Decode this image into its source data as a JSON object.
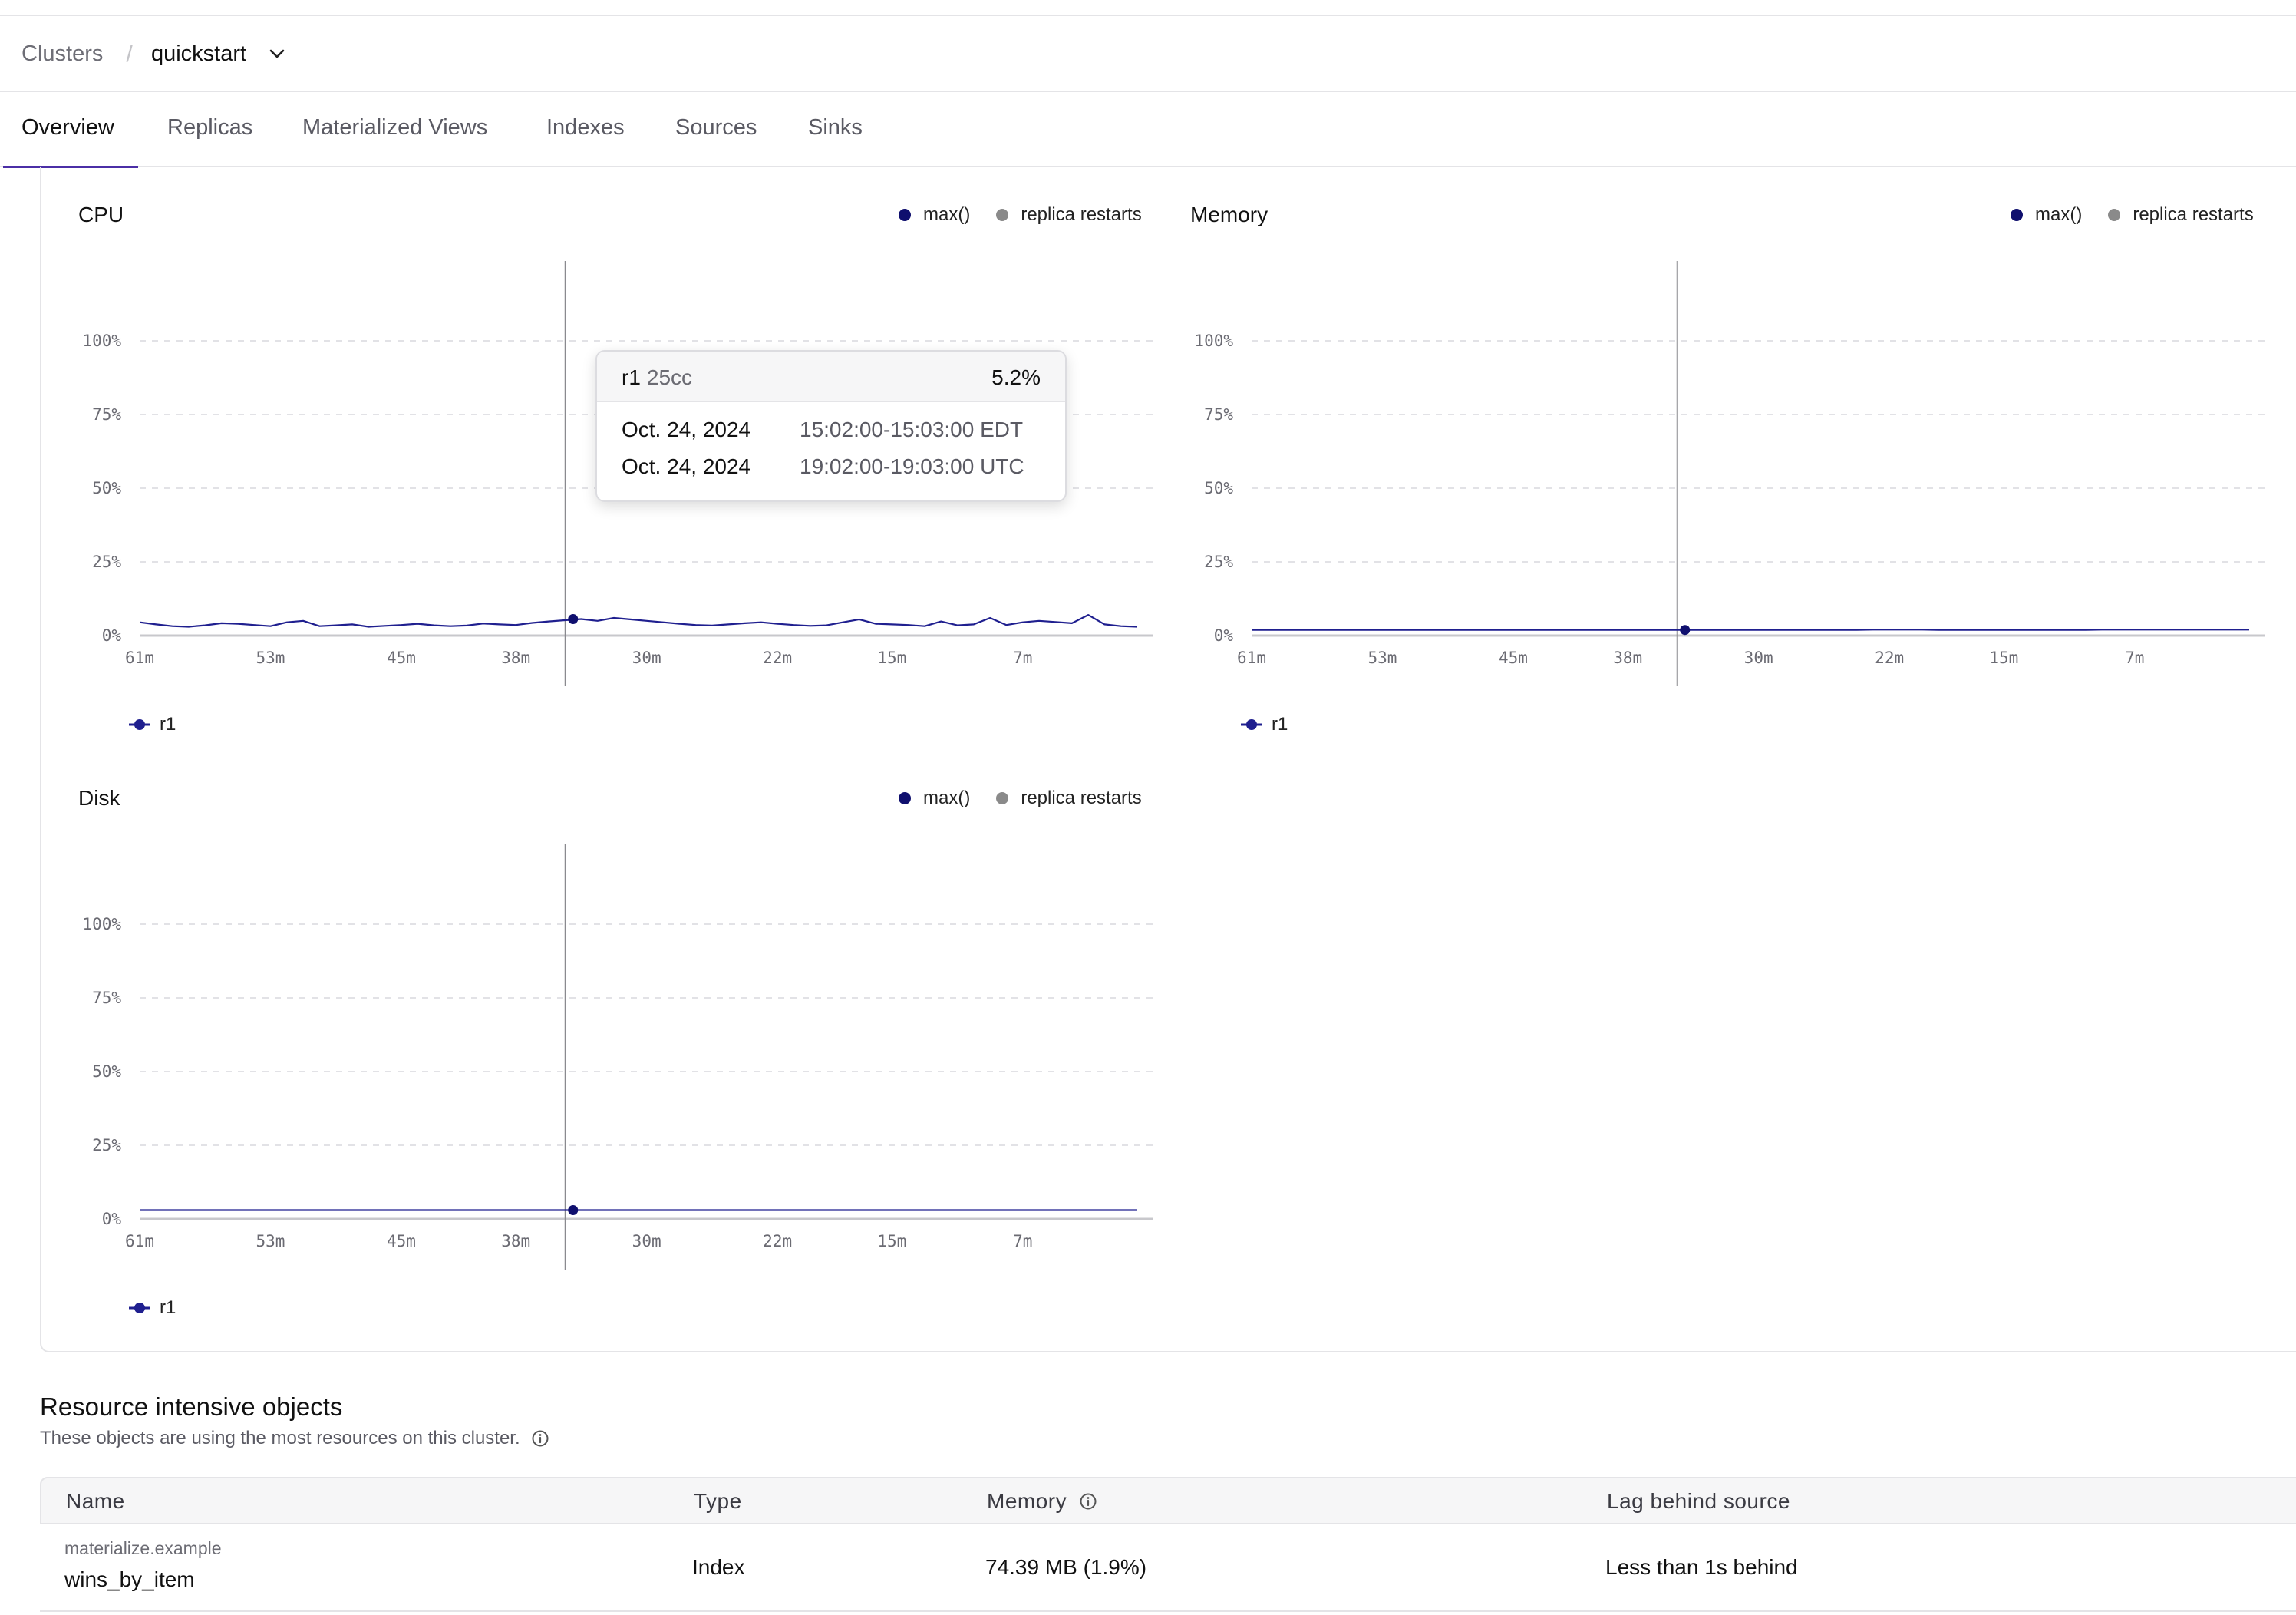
{
  "breadcrumb": {
    "root": "Clusters",
    "separator": "/",
    "current": "quickstart"
  },
  "tabs": [
    {
      "label": "Overview",
      "active": true
    },
    {
      "label": "Replicas",
      "active": false
    },
    {
      "label": "Materialized Views",
      "active": false
    },
    {
      "label": "Indexes",
      "active": false
    },
    {
      "label": "Sources",
      "active": false
    },
    {
      "label": "Sinks",
      "active": false
    }
  ],
  "legend": {
    "max_label": "max()",
    "restarts_label": "replica restarts",
    "max_color": "#0f0f6e",
    "restarts_color": "#8a8a8a"
  },
  "series_color": "#1f1f8f",
  "chart_data": [
    {
      "type": "line",
      "title": "CPU",
      "yticks": [
        "0%",
        "25%",
        "50%",
        "75%",
        "100%"
      ],
      "ylim": [
        0,
        100
      ],
      "xticks": [
        "61m",
        "53m",
        "45m",
        "38m",
        "30m",
        "22m",
        "15m",
        "7m"
      ],
      "x_range": [
        61,
        0
      ],
      "cursor_minute": 34.5,
      "grid": true,
      "legend_position": "top-right",
      "series": [
        {
          "name": "r1",
          "values": [
            4.5,
            3.8,
            3.2,
            3.0,
            3.5,
            4.2,
            4.0,
            3.6,
            3.2,
            4.5,
            5.0,
            3.2,
            3.5,
            3.8,
            3.0,
            3.3,
            3.6,
            4.0,
            3.5,
            3.2,
            3.4,
            4.1,
            3.8,
            3.6,
            4.3,
            4.8,
            5.2,
            5.6,
            5.0,
            6.0,
            5.5,
            5.0,
            4.5,
            4.0,
            3.6,
            3.4,
            3.8,
            4.2,
            4.5,
            4.0,
            3.6,
            3.3,
            3.5,
            4.5,
            5.5,
            4.0,
            3.8,
            3.6,
            3.2,
            4.8,
            3.5,
            3.8,
            6.0,
            3.6,
            4.5,
            5.0,
            4.6,
            4.2,
            7.0,
            3.8,
            3.2,
            3.0
          ]
        }
      ]
    },
    {
      "type": "line",
      "title": "Memory",
      "yticks": [
        "0%",
        "25%",
        "50%",
        "75%",
        "100%"
      ],
      "ylim": [
        0,
        100
      ],
      "xticks": [
        "61m",
        "53m",
        "45m",
        "38m",
        "30m",
        "22m",
        "15m",
        "7m"
      ],
      "x_range": [
        61,
        0
      ],
      "cursor_minute": 34.5,
      "grid": true,
      "legend_position": "top-right",
      "series": [
        {
          "name": "r1",
          "values": [
            1.9,
            1.9,
            1.9,
            1.9,
            1.9,
            1.9,
            1.9,
            1.9,
            1.9,
            1.9,
            1.9,
            1.9,
            1.9,
            1.9,
            1.9,
            1.9,
            1.9,
            1.9,
            1.9,
            1.9,
            1.9,
            1.9,
            1.9,
            1.9,
            1.9,
            1.9,
            1.9,
            1.9,
            1.9,
            1.9,
            1.9,
            1.9,
            1.9,
            1.9,
            1.9,
            1.9,
            1.9,
            1.9,
            2.0,
            2.0,
            2.0,
            2.0,
            1.9,
            1.9,
            1.9,
            1.9,
            1.9,
            1.9,
            1.9,
            1.9,
            1.9,
            1.9,
            2.0,
            2.0,
            2.0,
            2.0,
            2.0,
            2.0,
            2.0,
            2.0,
            2.0,
            2.0
          ]
        }
      ]
    },
    {
      "type": "line",
      "title": "Disk",
      "yticks": [
        "0%",
        "25%",
        "50%",
        "75%",
        "100%"
      ],
      "ylim": [
        0,
        100
      ],
      "xticks": [
        "61m",
        "53m",
        "45m",
        "38m",
        "30m",
        "22m",
        "15m",
        "7m"
      ],
      "x_range": [
        61,
        0
      ],
      "cursor_minute": 34.5,
      "grid": true,
      "legend_position": "top-right",
      "series": [
        {
          "name": "r1",
          "values": [
            3.0,
            3.0,
            3.0,
            3.0,
            3.0,
            3.0,
            3.0,
            3.0,
            3.0,
            3.0,
            3.0,
            3.0,
            3.0,
            3.0,
            3.0,
            3.0,
            3.0,
            3.0,
            3.0,
            3.0,
            3.0,
            3.0,
            3.0,
            3.0,
            3.0,
            3.0,
            3.0,
            3.0,
            3.0,
            3.0,
            3.0,
            3.0,
            3.0,
            3.0,
            3.0,
            3.0,
            3.0,
            3.0,
            3.0,
            3.0,
            3.0,
            3.0,
            3.0,
            3.0,
            3.0,
            3.0,
            3.0,
            3.0,
            3.0,
            3.0,
            3.0,
            3.0,
            3.0,
            3.0,
            3.0,
            3.0,
            3.0,
            3.0,
            3.0,
            3.0,
            3.0,
            3.0
          ]
        }
      ]
    }
  ],
  "tooltip": {
    "replica": "r1",
    "size": "25cc",
    "value": "5.2%",
    "rows": [
      {
        "date": "Oct. 24, 2024",
        "time": "15:02:00-15:03:00 EDT"
      },
      {
        "date": "Oct. 24, 2024",
        "time": "19:02:00-19:03:00 UTC"
      }
    ]
  },
  "resources": {
    "title": "Resource intensive objects",
    "subtitle": "These objects are using the most resources on this cluster.",
    "columns": {
      "name": "Name",
      "type": "Type",
      "memory": "Memory",
      "lag": "Lag behind source"
    },
    "rows": [
      {
        "schema": "materialize.example",
        "name": "wins_by_item",
        "type": "Index",
        "memory": "74.39 MB (1.9%)",
        "lag": "Less than 1s behind"
      }
    ]
  }
}
